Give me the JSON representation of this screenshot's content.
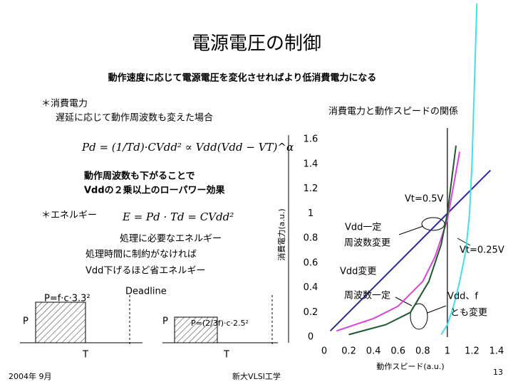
{
  "slide": {
    "title": "電源電圧の制御",
    "subtitle": "動作速度に応じて電源電圧を変化させればより低消費電力になる",
    "power_heading": "＊消費電力",
    "power_note": "遅延に応じて動作周波数も変えた場合",
    "power_formula": "Pd = (1/Td)·CVdd² ∝ Vdd(Vdd − VT)^α",
    "effect_lines": [
      "動作周波数も下がることで",
      "Vddの２乗以上のローパワー効果"
    ],
    "energy_heading": "＊エネルギー",
    "energy_formula": "E = Pd · Td = CVdd²",
    "energy_lines": [
      "処理に必要なエネルギー",
      "処理時間に制約がなければ",
      "Vdd下げるほど省エネルギー"
    ]
  },
  "diagram": {
    "left_power": "P=f·c·3.3²",
    "deadline": "Deadline",
    "left_p": "P",
    "left_t": "T",
    "right_p": "P",
    "right_power": "P=(2/3f)·c·2.5²",
    "right_t": "T"
  },
  "chart_data": {
    "type": "line",
    "title": "消費電力と動作スピードの関係",
    "xlabel": "動作スピード(a.u.)",
    "ylabel": "消費電力(a.u.)",
    "xlim": [
      0,
      1.4
    ],
    "ylim": [
      0,
      1.6
    ],
    "xticks": [
      0,
      0.2,
      0.4,
      0.6,
      0.8,
      1,
      1.2,
      1.4
    ],
    "yticks": [
      0,
      0.2,
      0.4,
      0.6,
      0.8,
      1,
      1.2,
      1.4,
      1.6
    ],
    "series": [
      {
        "color": "#2b2b9a",
        "x": [
          0.05,
          1.35
        ],
        "values": [
          0.05,
          1.35
        ]
      },
      {
        "color": "#e040e0",
        "x": [
          0.1,
          0.4,
          0.6,
          0.8,
          0.9,
          1.0,
          1.1
        ],
        "values": [
          0.05,
          0.15,
          0.25,
          0.45,
          0.65,
          0.95,
          1.5
        ]
      },
      {
        "color": "#1a5a2a",
        "x": [
          0.2,
          0.5,
          0.7,
          0.85,
          0.95,
          1.0,
          1.07
        ],
        "values": [
          0.02,
          0.1,
          0.2,
          0.45,
          0.75,
          1.0,
          1.55
        ]
      },
      {
        "color": "#40e0f0",
        "x": [
          0.95,
          1.0,
          1.05,
          1.1,
          1.15,
          1.18,
          1.2,
          1.24
        ],
        "values": [
          0.02,
          0.1,
          0.25,
          0.45,
          0.7,
          1.0,
          1.4,
          2.7
        ]
      }
    ],
    "annotations": [
      "Vt=0.5V",
      "Vdd一定",
      "周波数変更",
      "Vt=0.25V",
      "Vdd変更",
      "周波数一定",
      "Vdd、f",
      "とも変更"
    ]
  },
  "footer": {
    "date": "2004年 9月",
    "course": "新大VLSI工学",
    "page": "13"
  }
}
